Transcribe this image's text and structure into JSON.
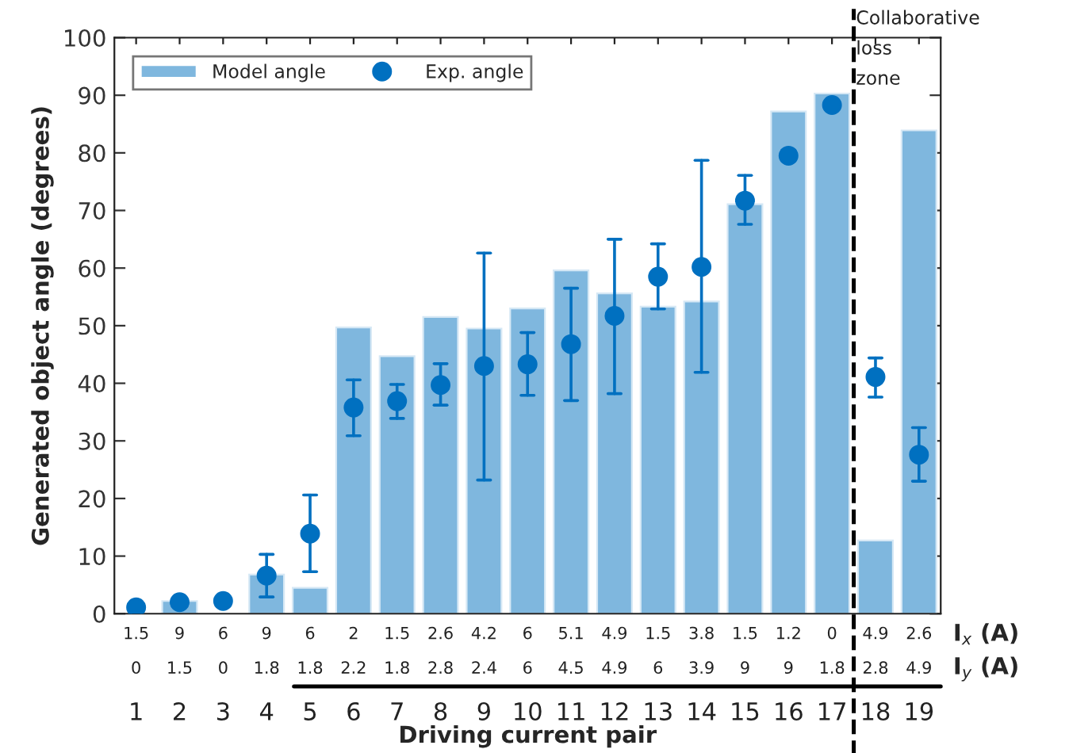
{
  "chart_data": {
    "type": "bar",
    "xlabel": "Driving current pair",
    "ylabel": "Generated object angle (degrees)",
    "x": [
      1,
      2,
      3,
      4,
      5,
      6,
      7,
      8,
      9,
      10,
      11,
      12,
      13,
      14,
      15,
      16,
      17,
      18,
      19
    ],
    "xlim": [
      0.5,
      19.5
    ],
    "xticks": [
      1,
      2,
      3,
      4,
      5,
      6,
      7,
      8,
      9,
      10,
      11,
      12,
      13,
      14,
      15,
      16,
      17,
      18,
      19
    ],
    "ylim": [
      0,
      100
    ],
    "yticks": [
      0,
      10,
      20,
      30,
      40,
      50,
      60,
      70,
      80,
      90,
      100
    ],
    "series": [
      {
        "name": "Model angle",
        "color": "#7fb7de",
        "values": [
          null,
          2.2,
          null,
          6.8,
          4.5,
          49.7,
          44.7,
          51.5,
          49.5,
          53.0,
          59.6,
          55.6,
          53.3,
          54.2,
          71.1,
          87.2,
          90.3,
          12.7,
          83.9
        ]
      },
      {
        "name": "Exp. angle",
        "type": "scatter",
        "color": "#0070c0",
        "values": [
          1.1,
          2.0,
          2.2,
          6.6,
          13.9,
          35.8,
          36.9,
          39.7,
          43.0,
          43.3,
          46.8,
          51.7,
          58.5,
          60.2,
          71.7,
          79.5,
          88.3,
          41.1,
          27.6
        ],
        "errors": [
          null,
          null,
          null,
          [
            2.9,
            10.3
          ],
          [
            7.3,
            20.6
          ],
          [
            30.9,
            40.6
          ],
          [
            33.9,
            39.8
          ],
          [
            36.2,
            43.4
          ],
          [
            23.2,
            62.6
          ],
          [
            37.9,
            48.8
          ],
          [
            37.0,
            56.5
          ],
          [
            38.2,
            65.0
          ],
          [
            52.9,
            64.2
          ],
          [
            41.9,
            78.7
          ],
          [
            67.6,
            76.1
          ],
          [
            78.6,
            80.5
          ],
          [
            87.5,
            89.0
          ],
          [
            37.6,
            44.4
          ],
          [
            23.0,
            32.3
          ]
        ]
      }
    ],
    "marker": "circle",
    "legend": "top left",
    "grid": false,
    "ref_lines": [
      {
        "axis": "x",
        "value": 17.5,
        "label": "Collaborative\nloss\nzone",
        "color": "#000000",
        "line_style": "dashed"
      }
    ],
    "annotations": [
      "I$_{x}$ (A)",
      "I$_{y}$ (A)",
      "1.5",
      "9",
      "6",
      "9",
      "6",
      "2",
      "1.5",
      "2.6",
      "4.2",
      "6",
      "5.1",
      "4.9",
      "1.5",
      "3.8",
      "1.5",
      "1.2",
      "0",
      "4.9",
      "2.6",
      "0",
      "1.5",
      "0",
      "1.8",
      "1.8",
      "2.2",
      "1.8",
      "2.8",
      "2.4",
      "6",
      "4.5",
      "4.9",
      "6",
      "3.9",
      "9",
      "9",
      "1.8",
      "2.8",
      "4.9"
    ]
  }
}
